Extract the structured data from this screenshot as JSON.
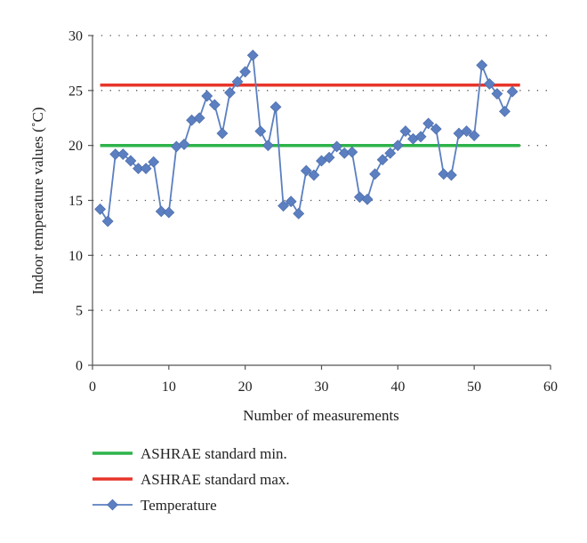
{
  "chart_data": {
    "type": "line",
    "title": "",
    "xlabel": "Number of measurements",
    "ylabel": "Indoor temperature values (˚C)",
    "xlim": [
      0,
      60
    ],
    "ylim": [
      0,
      30
    ],
    "xticks": [
      "0",
      "10",
      "20",
      "30",
      "40",
      "50",
      "60"
    ],
    "yticks": [
      "0",
      "5",
      "10",
      "15",
      "20",
      "25",
      "30"
    ],
    "grid": "horizontal dotted",
    "legend_position": "bottom",
    "series": [
      {
        "name": "ASHRAE standard min.",
        "color": "#2db34a",
        "style": "line",
        "x": [
          1,
          56
        ],
        "values": [
          20,
          20
        ]
      },
      {
        "name": "ASHRAE standard max.",
        "color": "#e8352a",
        "style": "line",
        "x": [
          1,
          56
        ],
        "values": [
          25.5,
          25.5
        ]
      },
      {
        "name": "Temperature",
        "color": "#5b7fc0",
        "style": "line-diamond",
        "x": [
          1,
          2,
          3,
          4,
          5,
          6,
          7,
          8,
          9,
          10,
          11,
          12,
          13,
          14,
          15,
          16,
          17,
          18,
          19,
          20,
          21,
          22,
          23,
          24,
          25,
          26,
          27,
          28,
          29,
          30,
          31,
          32,
          33,
          34,
          35,
          36,
          37,
          38,
          39,
          40,
          41,
          42,
          43,
          44,
          45,
          46,
          47,
          48,
          49,
          50,
          51,
          52,
          53,
          54,
          55
        ],
        "values": [
          14.2,
          13.1,
          19.2,
          19.2,
          18.6,
          17.9,
          17.9,
          18.5,
          14.0,
          13.9,
          19.9,
          20.1,
          22.3,
          22.5,
          24.5,
          23.7,
          21.1,
          24.8,
          25.8,
          26.7,
          28.2,
          21.3,
          20.0,
          23.5,
          14.5,
          14.9,
          13.8,
          17.7,
          17.3,
          18.6,
          18.9,
          19.9,
          19.3,
          19.4,
          15.3,
          15.1,
          17.4,
          18.7,
          19.3,
          20.0,
          21.3,
          20.6,
          20.8,
          22.0,
          21.5,
          17.4,
          17.3,
          21.1,
          21.3,
          20.9,
          27.3,
          25.6,
          24.7,
          23.1,
          24.9
        ]
      }
    ]
  }
}
